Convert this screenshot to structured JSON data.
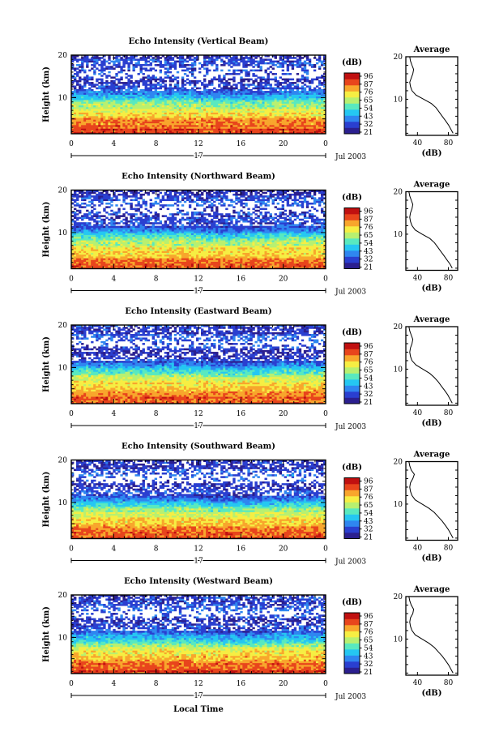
{
  "figure": {
    "x_axis_label": "Local Time",
    "day_label": "17",
    "month_year": "Jul 2003"
  },
  "colorbar": {
    "unit": "(dB)",
    "ticks": [
      "96",
      "87",
      "76",
      "65",
      "54",
      "43",
      "32",
      "21"
    ],
    "colors": [
      "#2b1f8f",
      "#2a3fd0",
      "#2f86f0",
      "#25c7f2",
      "#59e9bf",
      "#b8f070",
      "#f6ee43",
      "#f8a62c",
      "#e8451c",
      "#c01010"
    ]
  },
  "average_panel": {
    "title": "Average",
    "xlabel": "(dB)",
    "x_ticks": [
      "40",
      "80"
    ]
  },
  "chart_data": [
    {
      "type": "heatmap",
      "title": "Echo Intensity (Vertical Beam)",
      "ylabel": "Height (km)",
      "x": [
        0,
        4,
        8,
        12,
        16,
        20,
        0
      ],
      "x_tick_labels": [
        "0",
        "4",
        "8",
        "12",
        "16",
        "20",
        "0"
      ],
      "y_tick_labels": [
        "20",
        "10"
      ],
      "ylim": [
        1.5,
        20
      ],
      "colorbar_range_db": [
        21,
        96
      ],
      "profile": {
        "title": "Average",
        "xlabel": "(dB)",
        "height_km": [
          2,
          3,
          4,
          5,
          6,
          7,
          8,
          9,
          10,
          11,
          12,
          13,
          14,
          15,
          16,
          17,
          18,
          19,
          20
        ],
        "mean_db": [
          86,
          83,
          80,
          76,
          72,
          68,
          64,
          58,
          48,
          38,
          33,
          31,
          30,
          32,
          34,
          35,
          33,
          31,
          30
        ]
      }
    },
    {
      "type": "heatmap",
      "title": "Echo Intensity (Northward Beam)",
      "ylabel": "Height (km)",
      "x": [
        0,
        4,
        8,
        12,
        16,
        20,
        0
      ],
      "x_tick_labels": [
        "0",
        "4",
        "8",
        "12",
        "16",
        "20",
        "0"
      ],
      "y_tick_labels": [
        "20",
        "10"
      ],
      "ylim": [
        1.5,
        20
      ],
      "colorbar_range_db": [
        21,
        96
      ],
      "profile": {
        "title": "Average",
        "xlabel": "(dB)",
        "height_km": [
          2,
          3,
          4,
          5,
          6,
          7,
          8,
          9,
          10,
          11,
          12,
          13,
          14,
          15,
          16,
          17,
          18,
          19,
          20
        ],
        "mean_db": [
          85,
          82,
          78,
          74,
          70,
          66,
          62,
          56,
          46,
          37,
          33,
          31,
          30,
          31,
          33,
          34,
          32,
          30,
          29
        ]
      }
    },
    {
      "type": "heatmap",
      "title": "Echo Intensity (Eastward Beam)",
      "ylabel": "Height (km)",
      "x": [
        0,
        4,
        8,
        12,
        16,
        20,
        0
      ],
      "x_tick_labels": [
        "0",
        "4",
        "8",
        "12",
        "16",
        "20",
        "0"
      ],
      "y_tick_labels": [
        "20",
        "10"
      ],
      "ylim": [
        1.5,
        20
      ],
      "colorbar_range_db": [
        21,
        96
      ],
      "profile": {
        "title": "Average",
        "xlabel": "(dB)",
        "height_km": [
          2,
          3,
          4,
          5,
          6,
          7,
          8,
          9,
          10,
          11,
          12,
          13,
          14,
          15,
          16,
          17,
          18,
          19,
          20
        ],
        "mean_db": [
          85,
          82,
          79,
          75,
          71,
          67,
          62,
          56,
          47,
          38,
          33,
          31,
          30,
          31,
          33,
          34,
          32,
          30,
          29
        ]
      }
    },
    {
      "type": "heatmap",
      "title": "Echo Intensity (Southward Beam)",
      "ylabel": "Height (km)",
      "x": [
        0,
        4,
        8,
        12,
        16,
        20,
        0
      ],
      "x_tick_labels": [
        "0",
        "4",
        "8",
        "12",
        "16",
        "20",
        "0"
      ],
      "y_tick_labels": [
        "20",
        "10"
      ],
      "ylim": [
        1.5,
        20
      ],
      "colorbar_range_db": [
        21,
        96
      ],
      "profile": {
        "title": "Average",
        "xlabel": "(dB)",
        "height_km": [
          2,
          3,
          4,
          5,
          6,
          7,
          8,
          9,
          10,
          11,
          12,
          13,
          14,
          15,
          16,
          17,
          18,
          19,
          20
        ],
        "mean_db": [
          86,
          83,
          80,
          76,
          72,
          67,
          62,
          55,
          46,
          37,
          33,
          31,
          30,
          31,
          34,
          36,
          32,
          30,
          29
        ]
      }
    },
    {
      "type": "heatmap",
      "title": "Echo Intensity (Westward Beam)",
      "ylabel": "Height (km)",
      "x": [
        0,
        4,
        8,
        12,
        16,
        20,
        0
      ],
      "x_tick_labels": [
        "0",
        "4",
        "8",
        "12",
        "16",
        "20",
        "0"
      ],
      "y_tick_labels": [
        "20",
        "10"
      ],
      "ylim": [
        1.5,
        20
      ],
      "colorbar_range_db": [
        21,
        96
      ],
      "profile": {
        "title": "Average",
        "xlabel": "(dB)",
        "height_km": [
          2,
          3,
          4,
          5,
          6,
          7,
          8,
          9,
          10,
          11,
          12,
          13,
          14,
          15,
          16,
          17,
          18,
          19,
          20
        ],
        "mean_db": [
          86,
          83,
          80,
          76,
          72,
          67,
          62,
          55,
          46,
          37,
          33,
          31,
          30,
          31,
          34,
          35,
          32,
          30,
          29
        ]
      }
    }
  ]
}
